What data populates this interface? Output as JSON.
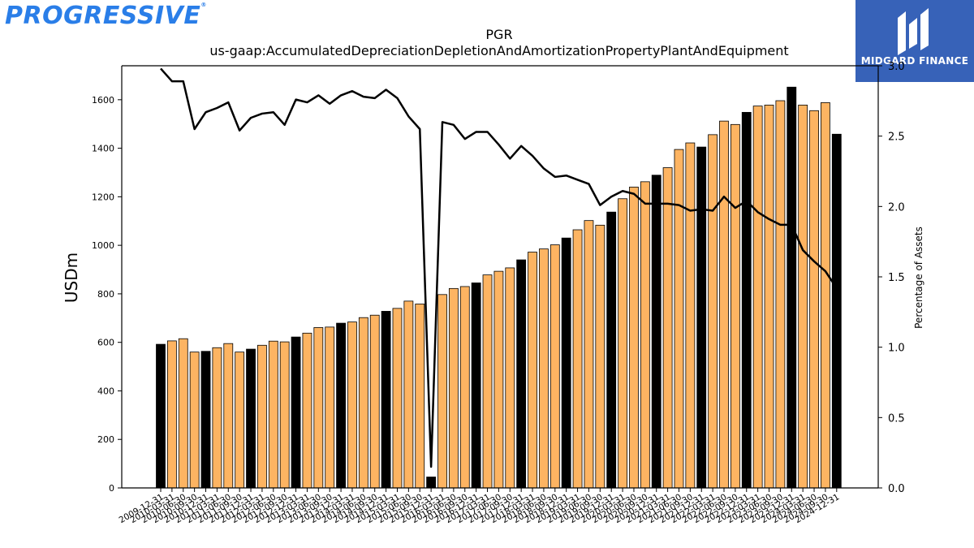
{
  "branding": {
    "left_logo": "PROGRESSIVE",
    "right_logo": "MIDGARD FINANCE",
    "right_logo_bg": "#3762b8",
    "left_logo_color": "#2a7ee8"
  },
  "chart_data": {
    "type": "bar",
    "title": "PGR",
    "subtitle": "us-gaap:AccumulatedDepreciationDepletionAndAmortizationPropertyPlantAndEquipment",
    "ylabel": "USDm",
    "y2label": "Percentage of Assets",
    "ylim": [
      0,
      1740
    ],
    "y2lim": [
      0,
      3.0
    ],
    "yticks": [
      0,
      200,
      400,
      600,
      800,
      1000,
      1200,
      1400,
      1600
    ],
    "y2ticks": [
      "0.0",
      "0.5",
      "1.0",
      "1.5",
      "2.0",
      "2.5",
      "3.0"
    ],
    "grid": false,
    "colors": {
      "annual": "#000000",
      "quarter": "#fdb462",
      "line": "#000000"
    },
    "categories": [
      "2009-12-31",
      "2010-03-31",
      "2010-06-30",
      "2010-09-30",
      "2010-12-31",
      "2011-03-31",
      "2011-06-30",
      "2011-09-30",
      "2011-12-31",
      "2012-03-31",
      "2012-06-30",
      "2012-09-30",
      "2012-12-31",
      "2013-03-31",
      "2013-06-30",
      "2013-09-30",
      "2013-12-31",
      "2014-03-31",
      "2014-06-30",
      "2014-09-30",
      "2014-12-31",
      "2015-03-31",
      "2015-06-30",
      "2015-09-30",
      "2015-12-31",
      "2016-03-31",
      "2016-06-30",
      "2016-09-30",
      "2016-12-31",
      "2017-03-31",
      "2017-06-30",
      "2017-09-30",
      "2017-12-31",
      "2018-03-31",
      "2018-06-30",
      "2018-09-30",
      "2018-12-31",
      "2019-03-31",
      "2019-06-30",
      "2019-09-30",
      "2019-12-31",
      "2020-03-31",
      "2020-06-30",
      "2020-09-30",
      "2020-12-31",
      "2021-03-31",
      "2021-06-30",
      "2021-09-30",
      "2021-12-31",
      "2022-03-31",
      "2022-06-30",
      "2022-09-30",
      "2022-12-31",
      "2023-03-31",
      "2023-06-30",
      "2023-09-30",
      "2023-12-31",
      "2024-03-31",
      "2024-06-30",
      "2024-09-30",
      "2024-12-31"
    ],
    "annual_flags": [
      1,
      0,
      0,
      0,
      1,
      0,
      0,
      0,
      1,
      0,
      0,
      0,
      1,
      0,
      0,
      0,
      1,
      0,
      0,
      0,
      1,
      0,
      0,
      0,
      1,
      0,
      0,
      0,
      1,
      0,
      0,
      0,
      1,
      0,
      0,
      0,
      1,
      0,
      0,
      0,
      1,
      0,
      0,
      0,
      1,
      0,
      0,
      0,
      1,
      0,
      0,
      0,
      1,
      0,
      0,
      0,
      1,
      0,
      0,
      0,
      1
    ],
    "series": [
      {
        "values": [
          592,
          606,
          615,
          560,
          563,
          578,
          595,
          560,
          572,
          588,
          605,
          602,
          622,
          638,
          661,
          663,
          679,
          684,
          702,
          712,
          728,
          740,
          770,
          758,
          45,
          797,
          822,
          830,
          845,
          878,
          893,
          907,
          940,
          972,
          985,
          1002,
          1030,
          1064,
          1102,
          1083,
          1137,
          1192,
          1240,
          1262,
          1289,
          1320,
          1395,
          1422,
          1405,
          1456,
          1512,
          1498,
          1548,
          1574,
          1578,
          1596,
          1652,
          1578,
          1555,
          1588,
          1458
        ]
      },
      {
        "values": [
          2.98,
          2.89,
          2.89,
          2.55,
          2.67,
          2.7,
          2.74,
          2.54,
          2.63,
          2.66,
          2.67,
          2.58,
          2.76,
          2.74,
          2.79,
          2.73,
          2.79,
          2.82,
          2.78,
          2.77,
          2.83,
          2.77,
          2.64,
          2.55,
          0.15,
          2.6,
          2.58,
          2.48,
          2.53,
          2.53,
          2.44,
          2.34,
          2.43,
          2.36,
          2.27,
          2.21,
          2.22,
          2.19,
          2.16,
          2.01,
          2.07,
          2.11,
          2.09,
          2.02,
          2.02,
          2.02,
          2.01,
          1.97,
          1.98,
          1.97,
          2.07,
          1.99,
          2.04,
          1.96,
          1.91,
          1.87,
          1.87,
          1.69,
          1.61,
          1.54,
          1.42
        ]
      }
    ]
  }
}
